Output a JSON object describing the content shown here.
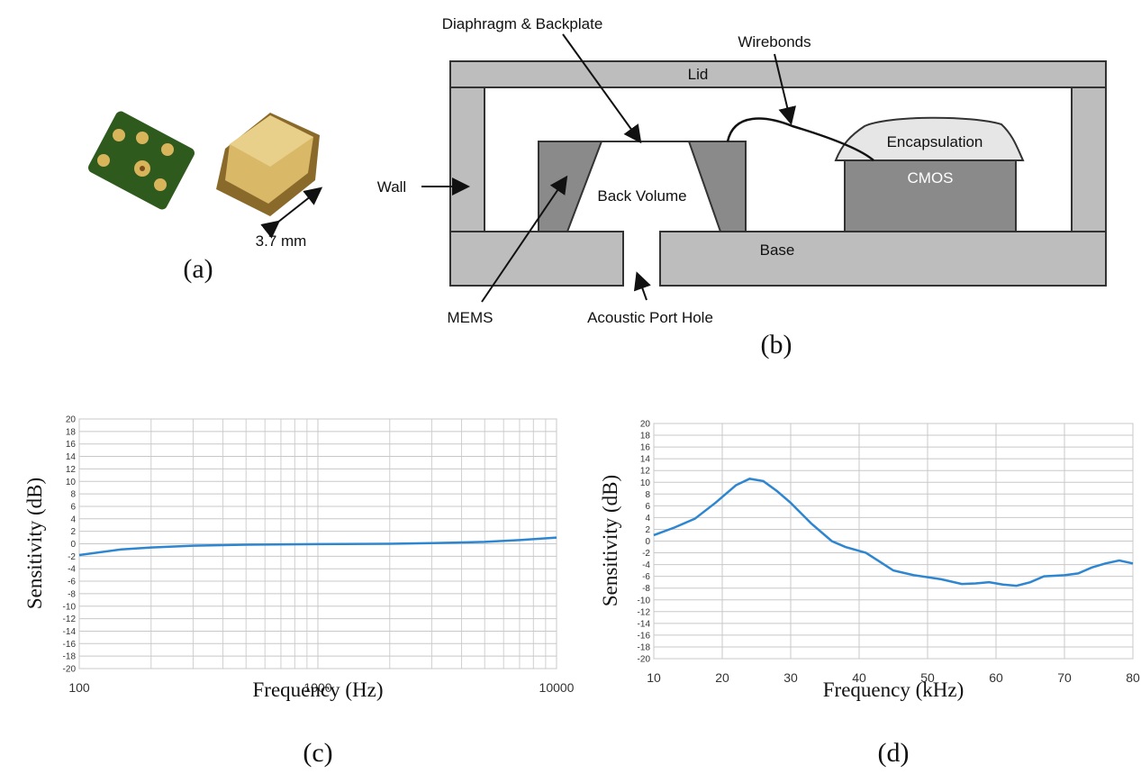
{
  "figure": {
    "a": {
      "dimension": "3.7 mm",
      "caption": "(a)"
    },
    "b": {
      "caption": "(b)",
      "labels": {
        "diaphragm": "Diaphragm & Backplate",
        "wirebonds": "Wirebonds",
        "lid": "Lid",
        "encapsulation": "Encapsulation",
        "cmos": "CMOS",
        "wall": "Wall",
        "back_volume": "Back Volume",
        "base": "Base",
        "mems": "MEMS",
        "port": "Acoustic Port Hole"
      }
    }
  },
  "chart_data": [
    {
      "type": "line",
      "caption": "(c)",
      "xlabel": "Frequency (Hz)",
      "ylabel": "Sensitivity (dB)",
      "log_x": true,
      "grid": true,
      "color": "#2e86d0",
      "xlim": [
        100,
        10000
      ],
      "xticks": [
        100,
        1000,
        10000
      ],
      "ylim": [
        -20,
        20
      ],
      "yticks": [
        -20,
        -18,
        -16,
        -14,
        -12,
        -10,
        -8,
        -6,
        -4,
        -2,
        0,
        2,
        4,
        6,
        8,
        10,
        12,
        14,
        16,
        18,
        20
      ],
      "x": [
        100,
        150,
        200,
        300,
        500,
        1000,
        2000,
        3000,
        5000,
        7000,
        10000
      ],
      "values": [
        -1.8,
        -0.9,
        -0.6,
        -0.3,
        -0.15,
        -0.05,
        0,
        0.1,
        0.3,
        0.6,
        1.0
      ]
    },
    {
      "type": "line",
      "caption": "(d)",
      "xlabel": "Frequency (kHz)",
      "ylabel": "Sensitivity (dB)",
      "log_x": false,
      "grid": true,
      "color": "#2e86d0",
      "xlim": [
        10,
        80
      ],
      "xticks": [
        10,
        20,
        30,
        40,
        50,
        60,
        70,
        80
      ],
      "ylim": [
        -20,
        20
      ],
      "yticks": [
        -20,
        -18,
        -16,
        -14,
        -12,
        -10,
        -8,
        -6,
        -4,
        -2,
        0,
        2,
        4,
        6,
        8,
        10,
        12,
        14,
        16,
        18,
        20
      ],
      "x": [
        10,
        13,
        16,
        19,
        22,
        24,
        26,
        28,
        30,
        33,
        36,
        38,
        41,
        43,
        45,
        48,
        52,
        55,
        57,
        59,
        61,
        63,
        65,
        67,
        70,
        72,
        74,
        76,
        78,
        80
      ],
      "values": [
        1,
        2.3,
        3.8,
        6.5,
        9.5,
        10.6,
        10.2,
        8.5,
        6.5,
        3,
        0,
        -1,
        -2,
        -3.5,
        -5,
        -5.8,
        -6.5,
        -7.3,
        -7.2,
        -7,
        -7.4,
        -7.6,
        -7,
        -6,
        -5.8,
        -5.5,
        -4.5,
        -3.8,
        -3.3,
        -3.8
      ]
    }
  ]
}
